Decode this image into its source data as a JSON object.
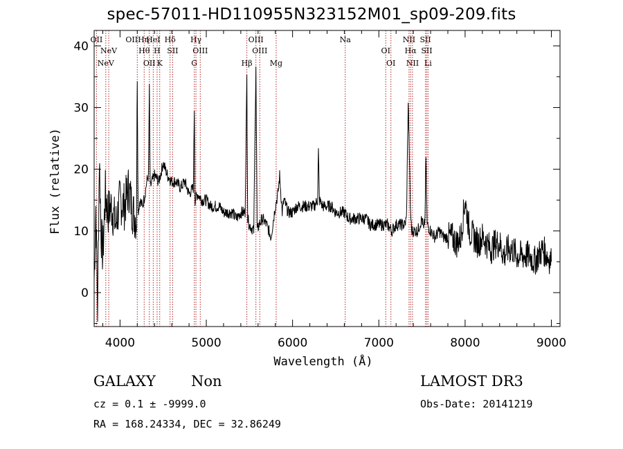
{
  "title": "spec-57011-HD110955N323152M01_sp09-209.fits",
  "info": {
    "class": "GALAXY",
    "subclass": "Non",
    "survey": "LAMOST DR3",
    "cz": "cz = 0.1 ± -9999.0",
    "obs_date": "Obs-Date: 20141219",
    "coords": "RA = 168.24334, DEC =  32.86249"
  },
  "chart_data": {
    "type": "line",
    "xlabel": "Wavelength (Å)",
    "ylabel": "Flux (relative)",
    "xlim": [
      3700,
      9100
    ],
    "ylim": [
      -5.5,
      42.5
    ],
    "x_ticks": [
      4000,
      5000,
      6000,
      7000,
      8000,
      9000
    ],
    "y_ticks": [
      0,
      10,
      20,
      30,
      40
    ],
    "grid": false,
    "line_color": "#000000",
    "line_marker_color": "#b22222",
    "series": [
      {
        "values_note": "sampled flux points",
        "x": [
          3700,
          3720,
          3740,
          3760,
          3780,
          3800,
          3830,
          3860,
          3900,
          3950,
          4000,
          4050,
          4100,
          4150,
          4190,
          4200,
          4210,
          4230,
          4260,
          4290,
          4310,
          4330,
          4340,
          4350,
          4370,
          4400,
          4450,
          4500,
          4550,
          4600,
          4650,
          4700,
          4750,
          4800,
          4850,
          4861,
          4870,
          4900,
          4950,
          5000,
          5050,
          5100,
          5150,
          5200,
          5250,
          5300,
          5350,
          5400,
          5450,
          5470,
          5480,
          5500,
          5550,
          5575,
          5590,
          5610,
          5650,
          5700,
          5750,
          5800,
          5830,
          5850,
          5880,
          5900,
          5950,
          6000,
          6050,
          6100,
          6150,
          6200,
          6250,
          6290,
          6300,
          6310,
          6350,
          6400,
          6450,
          6500,
          6550,
          6600,
          6650,
          6700,
          6750,
          6800,
          6850,
          6900,
          6950,
          7000,
          7050,
          7100,
          7150,
          7200,
          7250,
          7300,
          7320,
          7340,
          7350,
          7365,
          7380,
          7400,
          7450,
          7500,
          7520,
          7535,
          7545,
          7560,
          7600,
          7650,
          7700,
          7750,
          7800,
          7850,
          7900,
          7950,
          8000,
          8050,
          8100,
          8150,
          8200,
          8250,
          8300,
          8350,
          8400,
          8450,
          8500,
          8550,
          8600,
          8650,
          8700,
          8750,
          8800,
          8850,
          8900,
          8950,
          9000
        ],
        "y": [
          2,
          14,
          -3,
          22,
          10,
          6,
          16,
          13,
          14,
          11,
          15,
          14,
          17,
          13,
          12,
          35,
          13,
          15,
          14,
          16,
          18,
          19,
          33,
          17,
          18,
          19,
          18,
          21,
          19,
          18,
          18,
          17,
          18,
          16,
          17,
          30,
          15,
          16,
          15,
          15,
          14,
          14,
          14,
          13,
          13,
          13,
          12,
          13,
          13,
          35,
          12,
          11,
          10,
          37,
          10,
          11,
          12,
          11,
          9,
          14,
          16,
          19,
          13,
          15,
          13,
          13,
          14,
          14,
          14,
          14,
          14,
          15,
          23,
          15,
          14,
          14,
          14,
          13,
          13,
          13,
          12,
          12,
          12,
          12,
          12,
          11,
          11,
          11,
          11,
          11,
          10,
          11,
          11,
          11,
          12,
          31,
          25,
          14,
          10,
          10,
          10,
          12,
          10,
          12,
          22,
          11,
          10,
          9,
          10,
          9,
          9,
          9,
          8,
          9,
          15,
          10,
          9,
          8,
          9,
          8,
          7,
          8,
          8,
          6,
          7,
          7,
          6,
          6,
          6,
          6,
          5,
          6,
          7,
          6,
          5
        ]
      }
    ],
    "lines": [
      {
        "wavelength": 3727,
        "label": "OII"
      },
      {
        "wavelength": 3869,
        "label": "NeV"
      },
      {
        "wavelength": 3835,
        "label": "NeV"
      },
      {
        "wavelength": 4200,
        "label": "OIIHη"
      },
      {
        "wavelength": 4280,
        "label": "Hθ"
      },
      {
        "wavelength": 4340,
        "label": "OII"
      },
      {
        "wavelength": 4385,
        "label": "HeI"
      },
      {
        "wavelength": 4430,
        "label": "H"
      },
      {
        "wavelength": 4460,
        "label": "K"
      },
      {
        "wavelength": 4580,
        "label": "Hδ"
      },
      {
        "wavelength": 4610,
        "label": "SII"
      },
      {
        "wavelength": 4861,
        "label": "G"
      },
      {
        "wavelength": 4880,
        "label": "Hγ"
      },
      {
        "wavelength": 4930,
        "label": "OIII"
      },
      {
        "wavelength": 5470,
        "label": "Hβ"
      },
      {
        "wavelength": 5575,
        "label": "OIII"
      },
      {
        "wavelength": 5620,
        "label": "OIII"
      },
      {
        "wavelength": 5810,
        "label": "Mg"
      },
      {
        "wavelength": 6610,
        "label": "Na"
      },
      {
        "wavelength": 7080,
        "label": "OI"
      },
      {
        "wavelength": 7140,
        "label": "OI"
      },
      {
        "wavelength": 7350,
        "label": "NII"
      },
      {
        "wavelength": 7368,
        "label": "Hα"
      },
      {
        "wavelength": 7390,
        "label": "NII"
      },
      {
        "wavelength": 7540,
        "label": "SII"
      },
      {
        "wavelength": 7555,
        "label": "SII"
      },
      {
        "wavelength": 7570,
        "label": "Li"
      }
    ]
  }
}
